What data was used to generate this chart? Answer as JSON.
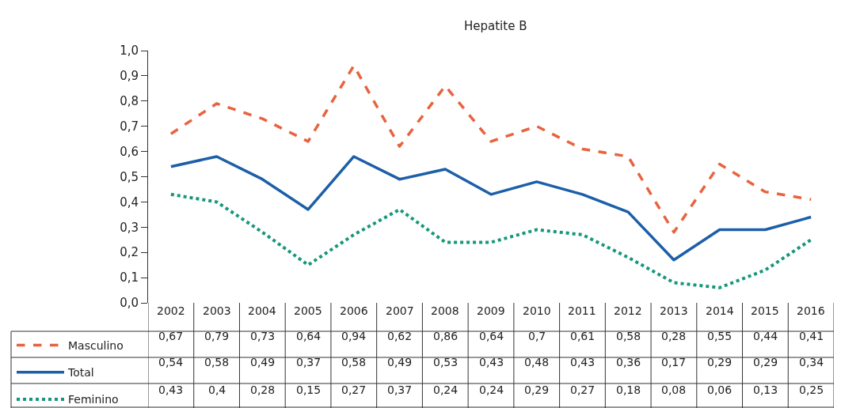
{
  "chart_data": {
    "type": "line",
    "title": "Hepatite B",
    "categories": [
      "2002",
      "2003",
      "2004",
      "2005",
      "2006",
      "2007",
      "2008",
      "2009",
      "2010",
      "2011",
      "2012",
      "2013",
      "2014",
      "2015",
      "2016"
    ],
    "series": [
      {
        "name": "Masculino",
        "color": "#e8633f",
        "line_style": "dashed",
        "values": [
          0.67,
          0.79,
          0.73,
          0.64,
          0.94,
          0.62,
          0.86,
          0.64,
          0.7,
          0.61,
          0.58,
          0.28,
          0.55,
          0.44,
          0.41
        ],
        "value_labels": [
          "0,67",
          "0,79",
          "0,73",
          "0,64",
          "0,94",
          "0,62",
          "0,86",
          "0,64",
          "0,7",
          "0,61",
          "0,58",
          "0,28",
          "0,55",
          "0,44",
          "0,41"
        ]
      },
      {
        "name": "Total",
        "color": "#1c5fa8",
        "line_style": "solid",
        "values": [
          0.54,
          0.58,
          0.49,
          0.37,
          0.58,
          0.49,
          0.53,
          0.43,
          0.48,
          0.43,
          0.36,
          0.17,
          0.29,
          0.29,
          0.34
        ],
        "value_labels": [
          "0,54",
          "0,58",
          "0,49",
          "0,37",
          "0,58",
          "0,49",
          "0,53",
          "0,43",
          "0,48",
          "0,43",
          "0,36",
          "0,17",
          "0,29",
          "0,29",
          "0,34"
        ]
      },
      {
        "name": "Feminino",
        "color": "#17977a",
        "line_style": "dotted",
        "values": [
          0.43,
          0.4,
          0.28,
          0.15,
          0.27,
          0.37,
          0.24,
          0.24,
          0.29,
          0.27,
          0.18,
          0.08,
          0.06,
          0.13,
          0.25
        ],
        "value_labels": [
          "0,43",
          "0,4",
          "0,28",
          "0,15",
          "0,27",
          "0,37",
          "0,24",
          "0,24",
          "0,29",
          "0,27",
          "0,18",
          "0,08",
          "0,06",
          "0,13",
          "0,25"
        ]
      }
    ],
    "ylim": [
      0,
      1.0
    ],
    "yticks": [
      {
        "value": 0,
        "label": "0,0"
      },
      {
        "value": 0.1,
        "label": "0,1"
      },
      {
        "value": 0.2,
        "label": "0,2"
      },
      {
        "value": 0.3,
        "label": "0,3"
      },
      {
        "value": 0.4,
        "label": "0,4"
      },
      {
        "value": 0.5,
        "label": "0,5"
      },
      {
        "value": 0.6,
        "label": "0,6"
      },
      {
        "value": 0.7,
        "label": "0,7"
      },
      {
        "value": 0.8,
        "label": "0,8"
      },
      {
        "value": 0.9,
        "label": "0,9"
      },
      {
        "value": 1.0,
        "label": "1,0"
      }
    ],
    "legend": "bottom",
    "marker": "none"
  }
}
